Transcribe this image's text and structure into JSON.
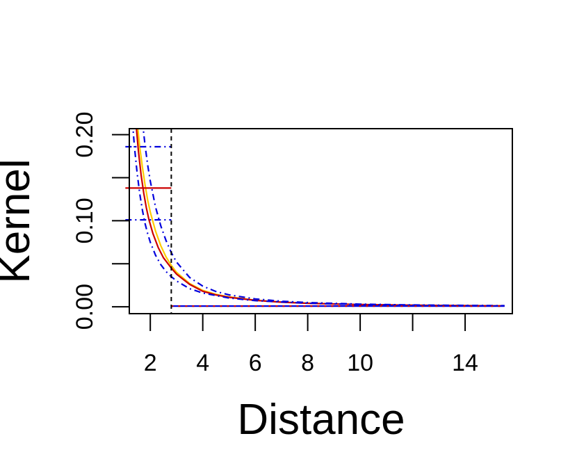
{
  "chart_data": {
    "type": "line",
    "title": "",
    "xlabel": "Distance",
    "ylabel": "Kernel",
    "xlim": [
      1.2,
      15.8
    ],
    "ylim": [
      -0.008,
      0.207
    ],
    "x_ticks": [
      2,
      4,
      6,
      8,
      10,
      12,
      14
    ],
    "x_tick_labels": [
      "2",
      "4",
      "6",
      "8",
      "10",
      "",
      "14"
    ],
    "y_ticks": [
      0.0,
      0.05,
      0.1,
      0.15,
      0.2
    ],
    "y_tick_labels": [
      "0.00",
      "",
      "0.10",
      "",
      "0.20"
    ],
    "grid": false,
    "legend": "none",
    "cutoff_x": 2.8,
    "series": [
      {
        "color": "#ffcc00",
        "style": "solid",
        "x": [
          1.5,
          1.6,
          1.7,
          1.8,
          1.9,
          2.0,
          2.2,
          2.4,
          2.6,
          2.8,
          3.0,
          3.5,
          4.0,
          4.5,
          5.0,
          6.0,
          7.0,
          8.0,
          9.0,
          10.0,
          11.0,
          12.0,
          13.0,
          14.0,
          15.0,
          15.5
        ],
        "y": [
          0.215,
          0.185,
          0.162,
          0.142,
          0.124,
          0.11,
          0.088,
          0.071,
          0.058,
          0.048,
          0.04,
          0.027,
          0.019,
          0.0145,
          0.0115,
          0.0077,
          0.0055,
          0.0042,
          0.0033,
          0.0027,
          0.0022,
          0.0019,
          0.0016,
          0.0014,
          0.0012,
          0.0011
        ]
      },
      {
        "color": "#cc0000",
        "style": "solid",
        "x": [
          1.45,
          1.55,
          1.65,
          1.75,
          1.85,
          1.95,
          2.1,
          2.3,
          2.5,
          2.8,
          3.0,
          3.5,
          4.0,
          4.5,
          5.0,
          6.0,
          7.0,
          8.0,
          9.0,
          10.0,
          12.0,
          14.0,
          15.5
        ],
        "y": [
          0.215,
          0.18,
          0.153,
          0.132,
          0.115,
          0.101,
          0.085,
          0.069,
          0.057,
          0.045,
          0.038,
          0.026,
          0.018,
          0.0138,
          0.011,
          0.0074,
          0.0053,
          0.004,
          0.0032,
          0.0026,
          0.0018,
          0.0013,
          0.001
        ]
      },
      {
        "color": "#0000dd",
        "style": "dashdot",
        "x": [
          1.32,
          1.4,
          1.5,
          1.6,
          1.7,
          1.8,
          1.9,
          2.0,
          2.2,
          2.4,
          2.6,
          2.8,
          3.0,
          3.5,
          4.0,
          5.0,
          6.0,
          8.0,
          10.0,
          12.0,
          14.0,
          15.5
        ],
        "y": [
          0.215,
          0.185,
          0.155,
          0.131,
          0.112,
          0.097,
          0.085,
          0.075,
          0.06,
          0.049,
          0.041,
          0.035,
          0.03,
          0.021,
          0.016,
          0.0102,
          0.0071,
          0.0041,
          0.0026,
          0.0018,
          0.0013,
          0.001
        ]
      },
      {
        "color": "#0000dd",
        "style": "dashdot",
        "x": [
          1.7,
          1.8,
          1.9,
          2.0,
          2.2,
          2.4,
          2.6,
          2.8,
          3.0,
          3.5,
          4.0,
          4.5,
          5.0,
          6.0,
          7.0,
          8.0,
          10.0,
          12.0,
          14.0,
          15.5
        ],
        "y": [
          0.215,
          0.188,
          0.165,
          0.146,
          0.116,
          0.094,
          0.077,
          0.063,
          0.052,
          0.034,
          0.024,
          0.0178,
          0.0138,
          0.0091,
          0.0065,
          0.0049,
          0.0031,
          0.0021,
          0.0016,
          0.0013
        ]
      },
      {
        "color": "#0000dd",
        "style": "solid",
        "x": [
          2.8,
          15.5
        ],
        "y": [
          0.0008,
          0.0008
        ]
      },
      {
        "color": "#cc0000",
        "style": "dotted",
        "x": [
          2.8,
          15.5
        ],
        "y": [
          0.0008,
          0.0008
        ]
      }
    ],
    "segments": [
      {
        "color": "#cc0000",
        "style": "solid",
        "x0": 1.05,
        "x1": 2.8,
        "y": 0.138
      },
      {
        "color": "#0000dd",
        "style": "dashdot",
        "x0": 1.05,
        "x1": 2.8,
        "y": 0.186
      },
      {
        "color": "#0000dd",
        "style": "dashdot",
        "x0": 1.05,
        "x1": 2.8,
        "y": 0.101
      }
    ]
  }
}
